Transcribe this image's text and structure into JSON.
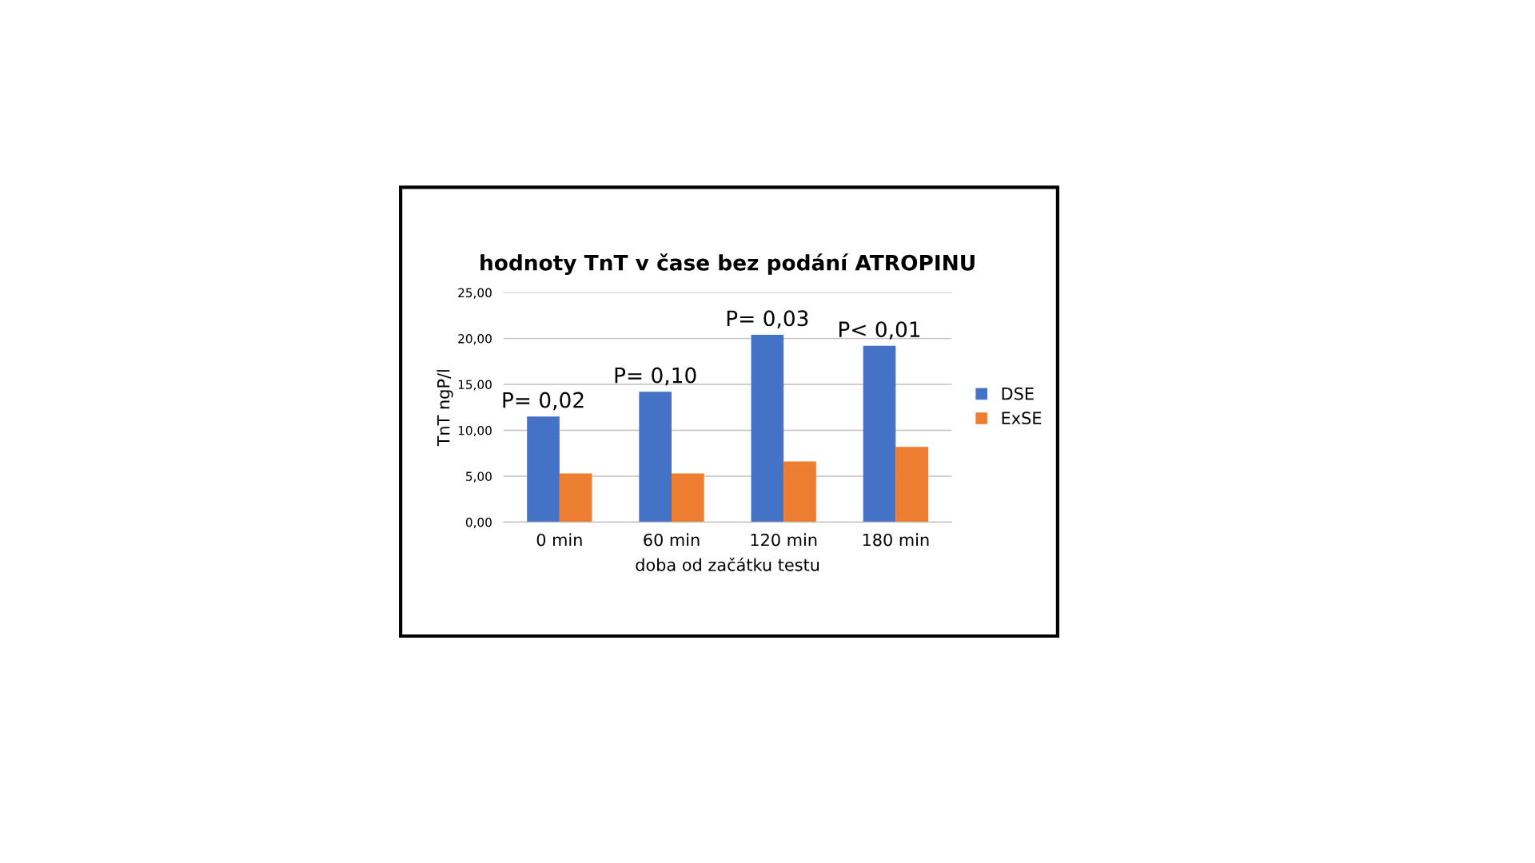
{
  "chart_data": {
    "type": "bar",
    "title": "hodnoty TnT v čase bez podání ATROPINU",
    "xlabel": "doba od začátku testu",
    "ylabel": "TnT ngP/l",
    "categories": [
      "0 min",
      "60 min",
      "120 min",
      "180 min"
    ],
    "series": [
      {
        "name": "DSE",
        "color": "#4472c4",
        "values": [
          11.5,
          14.2,
          20.4,
          19.2
        ]
      },
      {
        "name": "ExSE",
        "color": "#ed7d31",
        "values": [
          5.3,
          5.3,
          6.6,
          8.2
        ]
      }
    ],
    "ylim": [
      0,
      25
    ],
    "yticks": [
      {
        "value": 0,
        "label": "0,00"
      },
      {
        "value": 5,
        "label": "5,00"
      },
      {
        "value": 10,
        "label": "10,00"
      },
      {
        "value": 15,
        "label": "15,00"
      },
      {
        "value": 20,
        "label": "20,00"
      },
      {
        "value": 25,
        "label": "25,00"
      }
    ],
    "grid": "y",
    "legend": "right",
    "annotations": [
      {
        "text": "P= 0,02",
        "x": "0 min",
        "y": 11.5
      },
      {
        "text": "P= 0,10",
        "x": "60 min",
        "y": 14.2
      },
      {
        "text": "P= 0,03",
        "x": "120 min",
        "y": 20.4
      },
      {
        "text": "P< 0,01",
        "x": "180 min",
        "y": 19.2
      }
    ]
  }
}
